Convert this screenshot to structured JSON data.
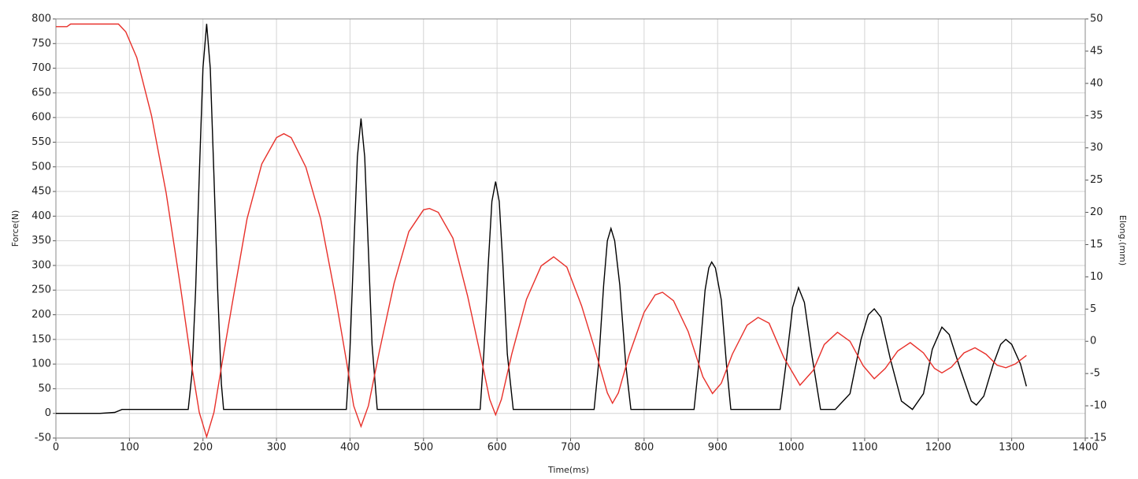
{
  "chart_data": {
    "type": "line",
    "x_label": "Time(ms)",
    "y_label": "Force(N)",
    "y2_label": "Elong.(mm)",
    "xlim": [
      0,
      1400
    ],
    "xticks": [
      0,
      100,
      200,
      300,
      400,
      500,
      600,
      700,
      800,
      900,
      1000,
      1100,
      1200,
      1300,
      1400
    ],
    "ylim": [
      -50,
      800
    ],
    "yticks": [
      -50,
      0,
      50,
      100,
      150,
      200,
      250,
      300,
      350,
      400,
      450,
      500,
      550,
      600,
      650,
      700,
      750,
      800
    ],
    "y2lim": [
      -15,
      50
    ],
    "y2ticks": [
      -15,
      -10,
      -5,
      0,
      5,
      10,
      15,
      20,
      25,
      30,
      35,
      40,
      45,
      50
    ],
    "grid": true,
    "series": [
      {
        "color": "#000000",
        "axis": "y",
        "x": [
          0,
          60,
          80,
          90,
          180,
          185,
          190,
          195,
          200,
          205,
          210,
          215,
          220,
          225,
          228,
          395,
          400,
          405,
          410,
          415,
          420,
          425,
          430,
          437,
          577,
          582,
          588,
          593,
          598,
          603,
          608,
          614,
          622,
          732,
          738,
          745,
          750,
          755,
          760,
          767,
          775,
          782,
          868,
          875,
          883,
          888,
          892,
          897,
          905,
          912,
          918,
          985,
          993,
          1002,
          1010,
          1018,
          1028,
          1040,
          1060,
          1080,
          1095,
          1105,
          1113,
          1122,
          1135,
          1150,
          1165,
          1180,
          1192,
          1205,
          1215,
          1230,
          1245,
          1252,
          1262,
          1275,
          1285,
          1292,
          1300,
          1312,
          1320
        ],
        "values": [
          0,
          0,
          2,
          8,
          8,
          80,
          250,
          480,
          700,
          790,
          700,
          480,
          250,
          60,
          8,
          8,
          130,
          330,
          520,
          598,
          520,
          330,
          140,
          8,
          8,
          120,
          300,
          430,
          470,
          430,
          300,
          120,
          8,
          8,
          100,
          260,
          350,
          375,
          350,
          260,
          100,
          8,
          8,
          110,
          250,
          295,
          307,
          295,
          230,
          100,
          8,
          8,
          100,
          215,
          255,
          225,
          120,
          8,
          8,
          40,
          150,
          200,
          212,
          195,
          110,
          25,
          8,
          40,
          130,
          175,
          160,
          90,
          25,
          17,
          35,
          100,
          140,
          150,
          140,
          100,
          55
        ]
      },
      {
        "color": "#e8302a",
        "axis": "y2",
        "x": [
          0,
          15,
          20,
          85,
          95,
          110,
          130,
          150,
          170,
          185,
          195,
          205,
          215,
          225,
          240,
          260,
          280,
          300,
          310,
          320,
          340,
          360,
          380,
          395,
          405,
          415,
          425,
          440,
          460,
          480,
          500,
          508,
          520,
          540,
          560,
          580,
          590,
          598,
          606,
          620,
          640,
          660,
          677,
          695,
          715,
          735,
          750,
          757,
          765,
          780,
          800,
          815,
          825,
          840,
          860,
          880,
          893,
          905,
          920,
          940,
          955,
          970,
          990,
          1012,
          1030,
          1045,
          1063,
          1080,
          1098,
          1113,
          1128,
          1145,
          1162,
          1180,
          1195,
          1205,
          1218,
          1235,
          1250,
          1265,
          1280,
          1292,
          1305,
          1320
        ],
        "values": [
          48.8,
          48.8,
          49.2,
          49.2,
          48,
          44,
          35,
          23,
          8,
          -4,
          -11,
          -14.8,
          -11,
          -4,
          6,
          19,
          27.5,
          31.6,
          32.2,
          31.6,
          27,
          19,
          7,
          -3,
          -10,
          -13.2,
          -10,
          -1.5,
          9,
          17,
          20.4,
          20.6,
          20,
          16,
          7,
          -3.5,
          -9,
          -11.4,
          -9,
          -2,
          6.5,
          11.7,
          13.1,
          11.5,
          5.5,
          -2,
          -8,
          -9.6,
          -8,
          -2,
          4.5,
          7.2,
          7.6,
          6.3,
          1.5,
          -5.5,
          -8.1,
          -6.5,
          -2,
          2.5,
          3.7,
          2.8,
          -2.5,
          -6.8,
          -4.5,
          -0.5,
          1.4,
          0,
          -3.8,
          -5.8,
          -4.2,
          -1.5,
          -0.2,
          -1.8,
          -4.2,
          -4.9,
          -4,
          -1.8,
          -1,
          -2,
          -3.7,
          -4.1,
          -3.5,
          -2.2
        ]
      }
    ]
  }
}
